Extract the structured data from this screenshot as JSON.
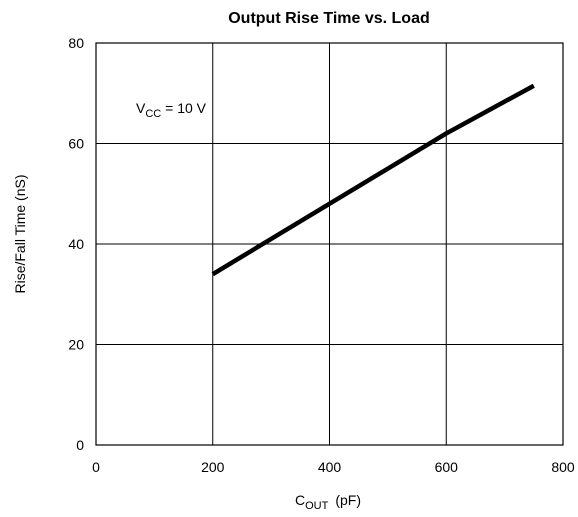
{
  "chart_data": {
    "type": "line",
    "title": "Output Rise Time vs. Load",
    "xlabel": {
      "main": "C",
      "sub": "OUT",
      "unit": "(pF)"
    },
    "ylabel": "Rise/Fall Time (nS)",
    "xlim": [
      0,
      800
    ],
    "ylim": [
      0,
      80
    ],
    "x_ticks": [
      0,
      200,
      400,
      600,
      800
    ],
    "y_ticks": [
      0,
      20,
      40,
      60,
      80
    ],
    "x_tick_labels": [
      "0",
      "200",
      "400",
      "600",
      "800"
    ],
    "y_tick_labels": [
      "0",
      "20",
      "40",
      "60",
      "80"
    ],
    "grid": true,
    "series": [
      {
        "x": [
          200,
          600,
          750
        ],
        "y": [
          34,
          62,
          71.5
        ]
      }
    ],
    "annotation": {
      "main": "V",
      "sub": "CC",
      "rest": " = 10 V"
    }
  }
}
